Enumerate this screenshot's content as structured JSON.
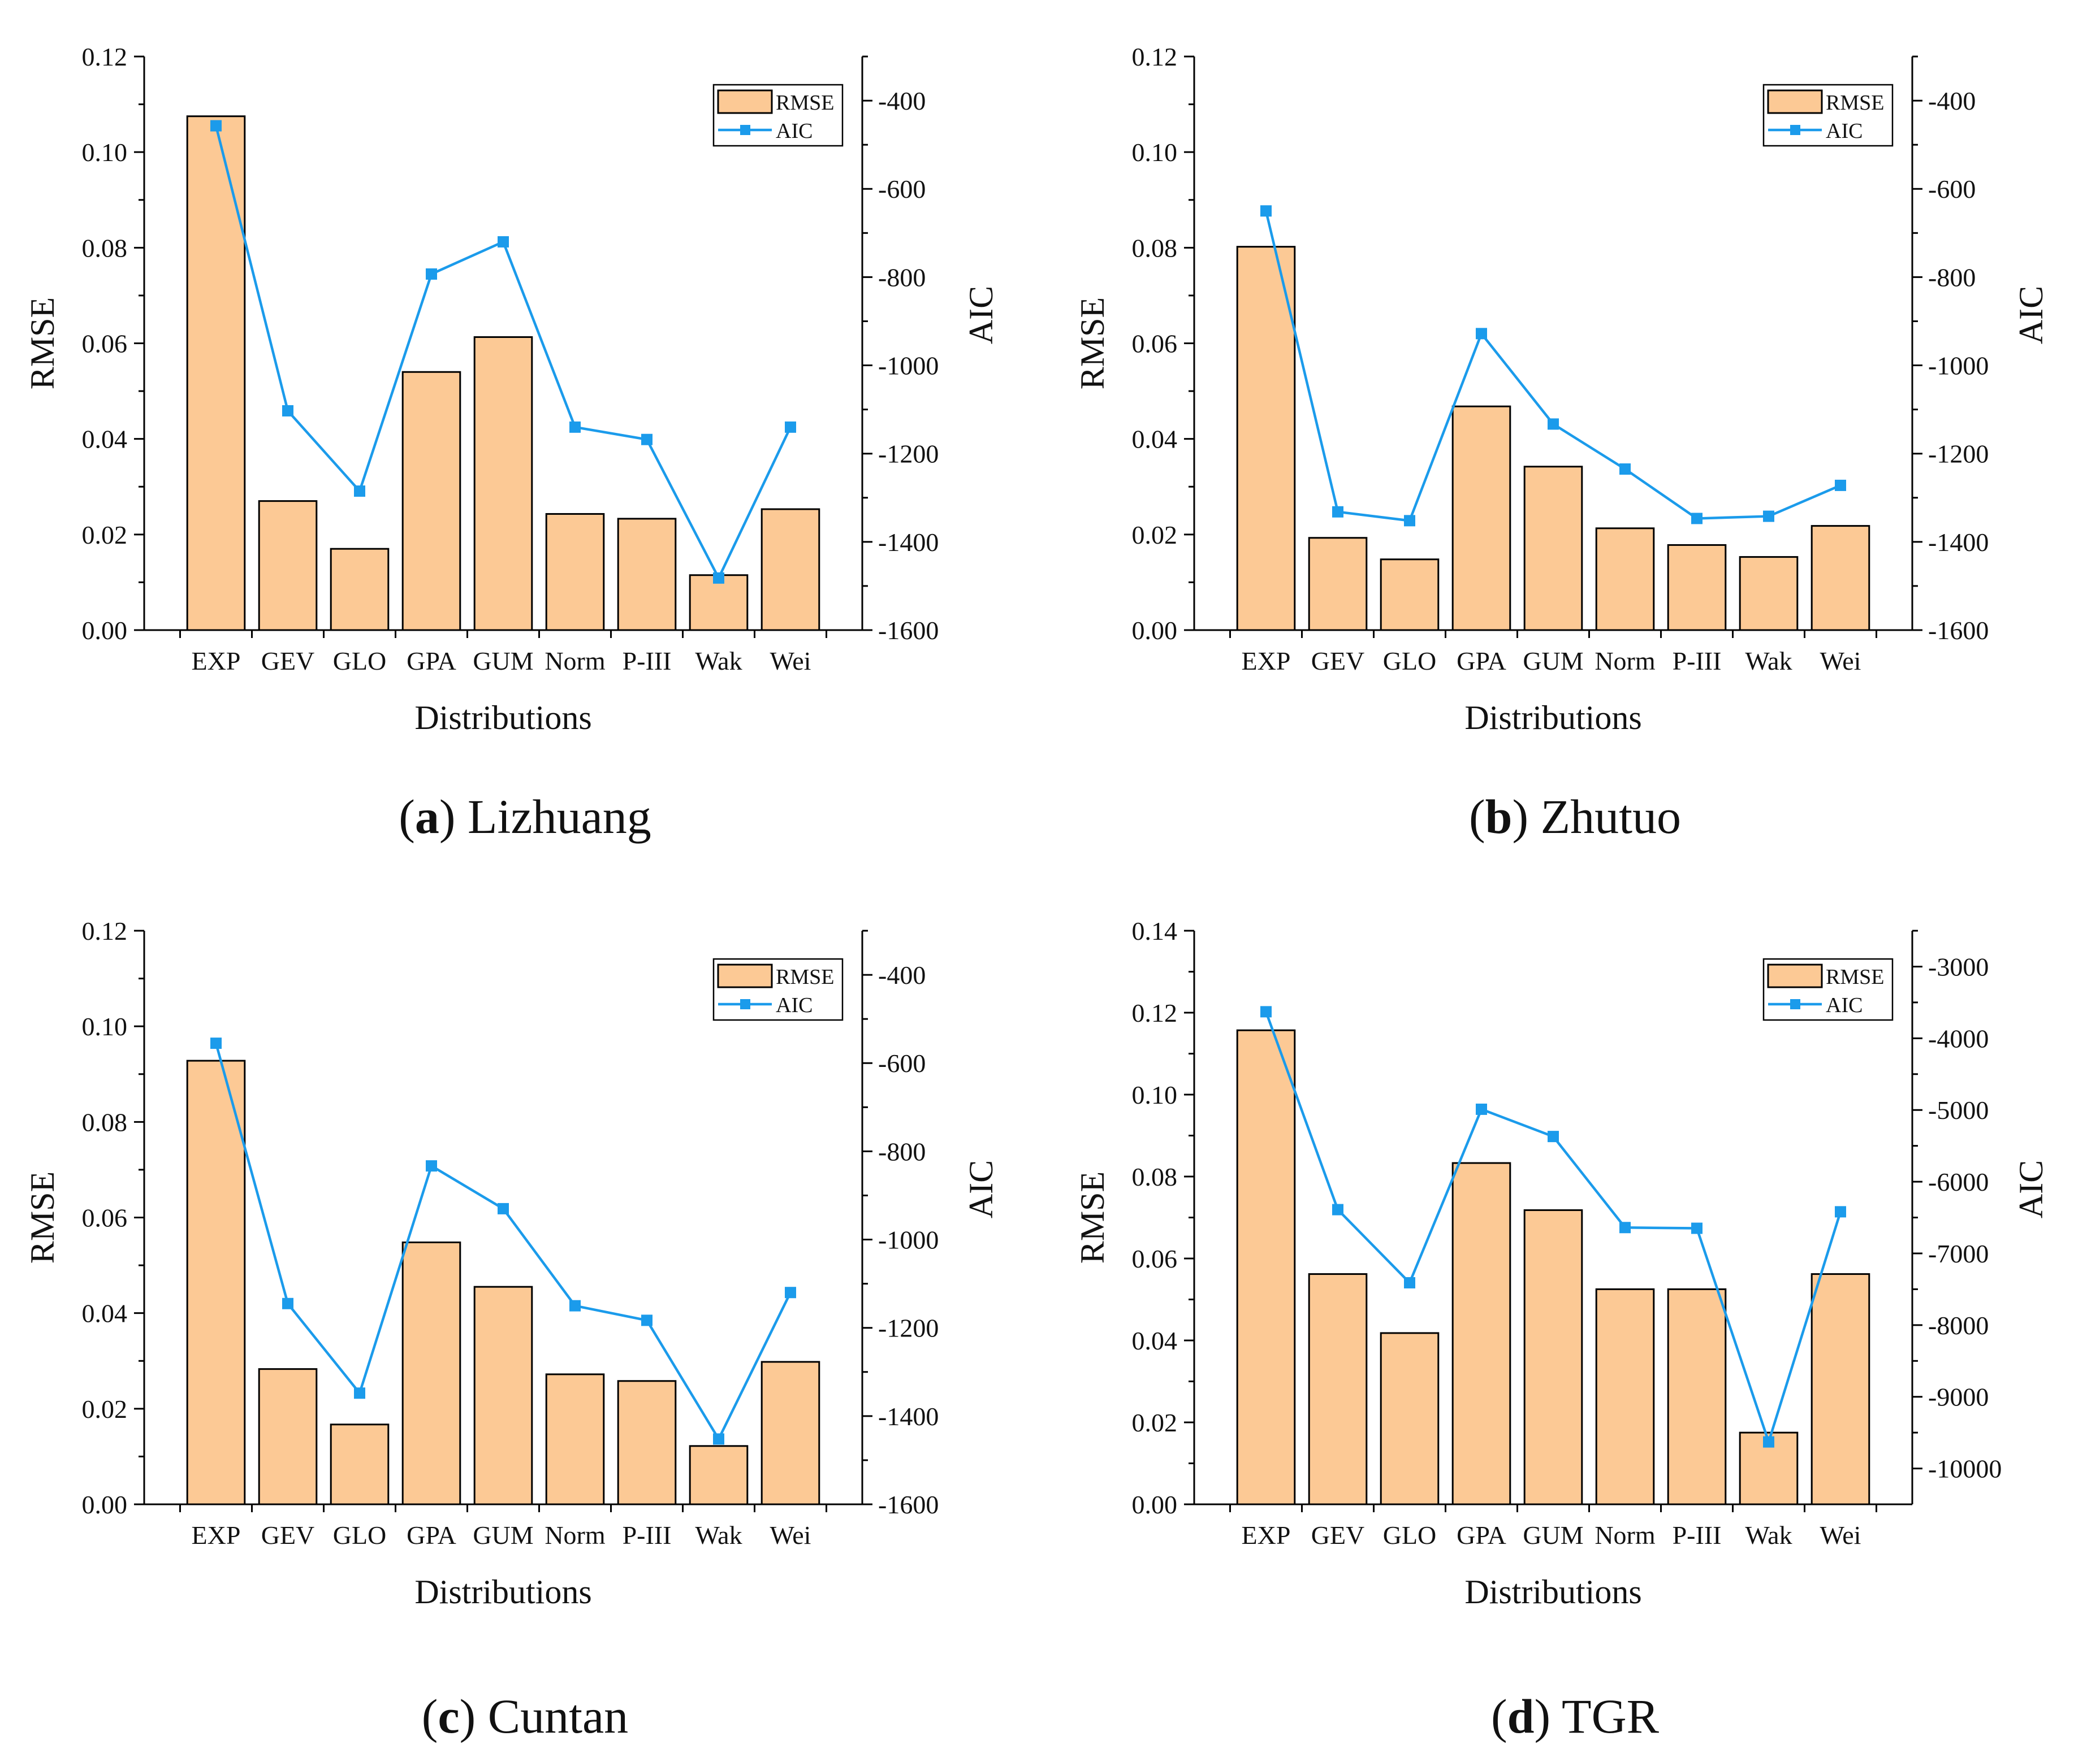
{
  "colors": {
    "bar_fill": "#FCC995",
    "bar_stroke": "#000000",
    "line": "#1B9BEB",
    "marker": "#1B9BEB",
    "axis": "#000000"
  },
  "chart_data": [
    {
      "type": "bar",
      "panel_letter": "a",
      "panel_title": "Lizhuang",
      "categories": [
        "EXP",
        "GEV",
        "GLO",
        "GPA",
        "GUM",
        "Norm",
        "P-III",
        "Wak",
        "Wei"
      ],
      "xlabel": "Distributions",
      "ylabel": "RMSE",
      "y2label": "AIC",
      "ylim": [
        0,
        0.12
      ],
      "yticks": [
        "0.00",
        "0.02",
        "0.04",
        "0.06",
        "0.08",
        "0.10",
        "0.12"
      ],
      "y2lim": [
        -1600,
        -300
      ],
      "y2ticks": [
        "-1600",
        "-1400",
        "-1200",
        "-1000",
        "-800",
        "-600",
        "-400"
      ],
      "legend": [
        "RMSE",
        "AIC"
      ],
      "series": [
        {
          "name": "RMSE",
          "type": "bar",
          "axis": "left",
          "values": [
            0.1075,
            0.027,
            0.017,
            0.054,
            0.0613,
            0.0243,
            0.0233,
            0.0115,
            0.0253
          ]
        },
        {
          "name": "AIC",
          "type": "line",
          "axis": "right",
          "values": [
            -457,
            -1103,
            -1285,
            -793,
            -720,
            -1140,
            -1168,
            -1482,
            -1140
          ]
        }
      ]
    },
    {
      "type": "bar",
      "panel_letter": "b",
      "panel_title": "Zhutuo",
      "categories": [
        "EXP",
        "GEV",
        "GLO",
        "GPA",
        "GUM",
        "Norm",
        "P-III",
        "Wak",
        "Wei"
      ],
      "xlabel": "Distributions",
      "ylabel": "RMSE",
      "y2label": "AIC",
      "ylim": [
        0,
        0.12
      ],
      "yticks": [
        "0.00",
        "0.02",
        "0.04",
        "0.06",
        "0.08",
        "0.10",
        "0.12"
      ],
      "y2lim": [
        -1600,
        -300
      ],
      "y2ticks": [
        "-1600",
        "-1400",
        "-1200",
        "-1000",
        "-800",
        "-600",
        "-400"
      ],
      "legend": [
        "RMSE",
        "AIC"
      ],
      "series": [
        {
          "name": "RMSE",
          "type": "bar",
          "axis": "left",
          "values": [
            0.0802,
            0.0193,
            0.0148,
            0.0468,
            0.0342,
            0.0213,
            0.0178,
            0.0153,
            0.0218
          ]
        },
        {
          "name": "AIC",
          "type": "line",
          "axis": "right",
          "values": [
            -650,
            -1332,
            -1352,
            -928,
            -1133,
            -1235,
            -1347,
            -1342,
            -1272
          ]
        }
      ]
    },
    {
      "type": "bar",
      "panel_letter": "c",
      "panel_title": "Cuntan",
      "categories": [
        "EXP",
        "GEV",
        "GLO",
        "GPA",
        "GUM",
        "Norm",
        "P-III",
        "Wak",
        "Wei"
      ],
      "xlabel": "Distributions",
      "ylabel": "RMSE",
      "y2label": "AIC",
      "ylim": [
        0,
        0.12
      ],
      "yticks": [
        "0.00",
        "0.02",
        "0.04",
        "0.06",
        "0.08",
        "0.10",
        "0.12"
      ],
      "y2lim": [
        -1600,
        -300
      ],
      "y2ticks": [
        "-1600",
        "-1400",
        "-1200",
        "-1000",
        "-800",
        "-600",
        "-400"
      ],
      "legend": [
        "RMSE",
        "AIC"
      ],
      "series": [
        {
          "name": "RMSE",
          "type": "bar",
          "axis": "left",
          "values": [
            0.0928,
            0.0283,
            0.0167,
            0.0548,
            0.0455,
            0.0272,
            0.0258,
            0.0122,
            0.0298
          ]
        },
        {
          "name": "AIC",
          "type": "line",
          "axis": "right",
          "values": [
            -555,
            -1145,
            -1348,
            -833,
            -930,
            -1150,
            -1183,
            -1452,
            -1120
          ]
        }
      ]
    },
    {
      "type": "bar",
      "panel_letter": "d",
      "panel_title": "TGR",
      "categories": [
        "EXP",
        "GEV",
        "GLO",
        "GPA",
        "GUM",
        "Norm",
        "P-III",
        "Wak",
        "Wei"
      ],
      "xlabel": "Distributions",
      "ylabel": "RMSE",
      "y2label": "AIC",
      "ylim": [
        0,
        0.14
      ],
      "yticks": [
        "0.00",
        "0.02",
        "0.04",
        "0.06",
        "0.08",
        "0.10",
        "0.12",
        "0.14"
      ],
      "y2lim": [
        -10500,
        -2500
      ],
      "y2ticks": [
        "-10000",
        "-9000",
        "-8000",
        "-7000",
        "-6000",
        "-5000",
        "-4000",
        "-3000"
      ],
      "legend": [
        "RMSE",
        "AIC"
      ],
      "series": [
        {
          "name": "RMSE",
          "type": "bar",
          "axis": "left",
          "values": [
            0.1157,
            0.0562,
            0.0418,
            0.0833,
            0.0718,
            0.0525,
            0.0525,
            0.0175,
            0.0562
          ]
        },
        {
          "name": "AIC",
          "type": "line",
          "axis": "right",
          "values": [
            -3630,
            -6390,
            -7410,
            -4990,
            -5370,
            -6640,
            -6650,
            -9630,
            -6420
          ]
        }
      ]
    }
  ]
}
